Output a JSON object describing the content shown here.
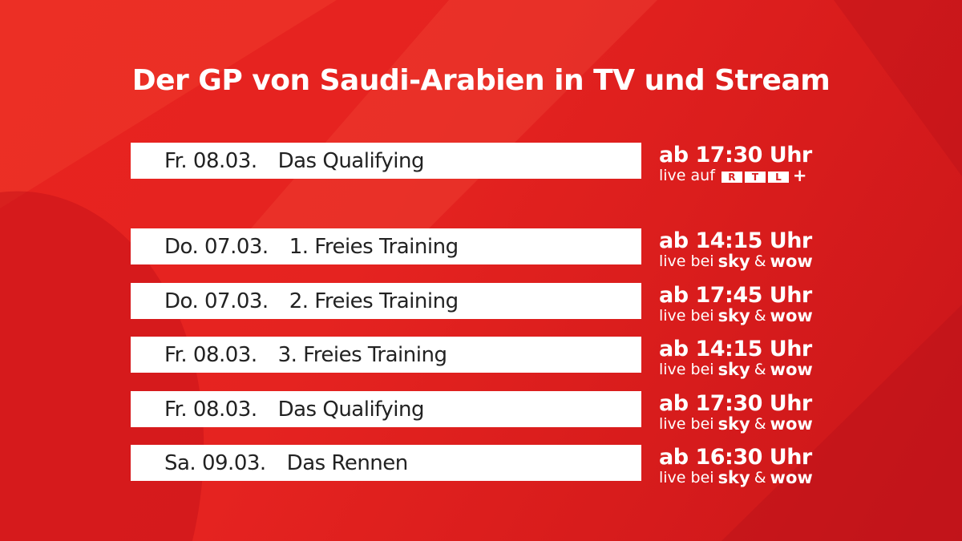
{
  "title": "Der GP von Saudi-Arabien in TV und Stream",
  "rows": [
    {
      "date": "Fr. 08.03.",
      "event": "Das Qualifying",
      "time": "ab 17:30 Uhr",
      "live": "live auf",
      "logo": {
        "boxed": [
          "R",
          "T",
          "L"
        ],
        "suffix": "+"
      }
    },
    {
      "date": "Do. 07.03.",
      "event": "1. Freies Training",
      "time": "ab 14:15 Uhr",
      "live": "live bei",
      "logo": {
        "parts": [
          "sky",
          "&",
          "wow"
        ]
      }
    },
    {
      "date": "Do. 07.03.",
      "event": "2. Freies Training",
      "time": "ab 17:45 Uhr",
      "live": "live bei",
      "logo": {
        "parts": [
          "sky",
          "&",
          "wow"
        ]
      }
    },
    {
      "date": "Fr. 08.03.",
      "event": "3. Freies Training",
      "time": "ab 14:15 Uhr",
      "live": "live bei",
      "logo": {
        "parts": [
          "sky",
          "&",
          "wow"
        ]
      }
    },
    {
      "date": "Fr. 08.03.",
      "event": "Das Qualifying",
      "time": "ab 17:30 Uhr",
      "live": "live bei",
      "logo": {
        "parts": [
          "sky",
          "&",
          "wow"
        ]
      }
    },
    {
      "date": "Sa. 09.03.",
      "event": "Das Rennen",
      "time": "ab 16:30 Uhr",
      "live": "live bei",
      "logo": {
        "parts": [
          "sky",
          "&",
          "wow"
        ]
      }
    }
  ]
}
